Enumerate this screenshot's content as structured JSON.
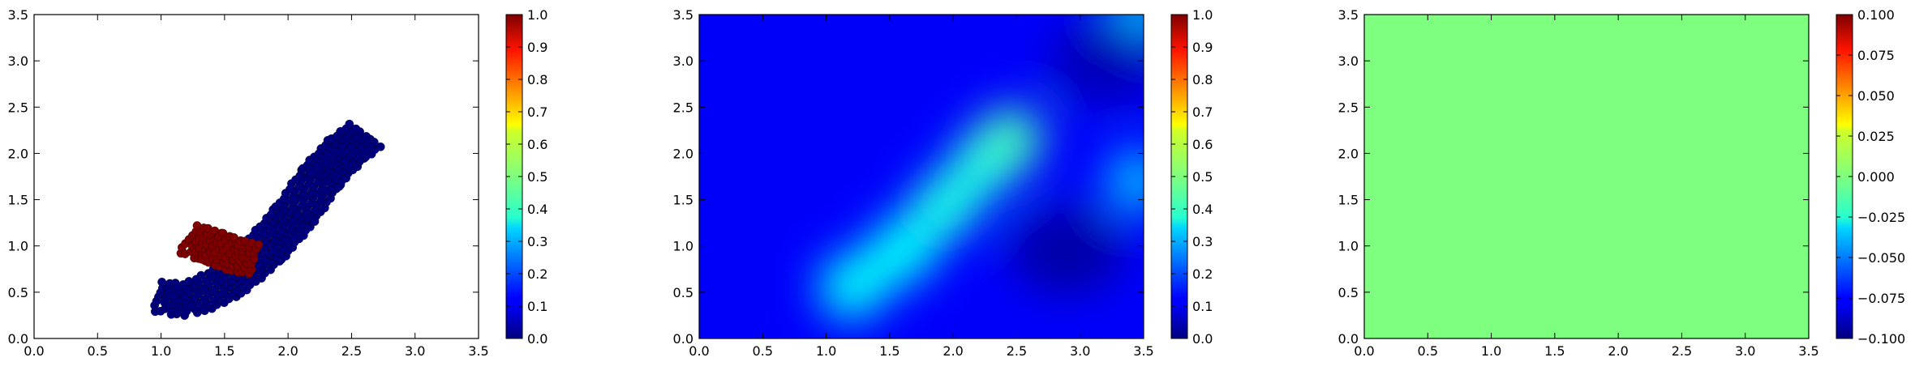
{
  "chart_data": [
    {
      "type": "scatter",
      "xlim": [
        0.0,
        3.5
      ],
      "ylim": [
        0.0,
        3.5
      ],
      "x_ticks": [
        "0.0",
        "0.5",
        "1.0",
        "1.5",
        "2.0",
        "2.5",
        "3.0",
        "3.5"
      ],
      "y_ticks": [
        "0.0",
        "0.5",
        "1.0",
        "1.5",
        "2.0",
        "2.5",
        "3.0",
        "3.5"
      ],
      "colormap": "jet",
      "colorbar": {
        "range": [
          0.0,
          1.0
        ],
        "ticks": [
          "0.0",
          "0.1",
          "0.2",
          "0.3",
          "0.4",
          "0.5",
          "0.6",
          "0.7",
          "0.8",
          "0.9",
          "1.0"
        ]
      },
      "grid": false,
      "clusters": [
        {
          "value": 0.0,
          "color": "#00007f",
          "centerline": [
            [
              0.98,
              0.45
            ],
            [
              1.2,
              0.42
            ],
            [
              1.5,
              0.6
            ],
            [
              1.8,
              0.95
            ],
            [
              2.05,
              1.35
            ],
            [
              2.25,
              1.75
            ],
            [
              2.45,
              2.05
            ],
            [
              2.6,
              2.2
            ]
          ],
          "half_width": 0.19
        },
        {
          "value": 1.0,
          "color": "#7f0000",
          "centerline": [
            [
              1.22,
              1.07
            ],
            [
              1.4,
              1.0
            ],
            [
              1.58,
              0.9
            ],
            [
              1.72,
              0.87
            ]
          ],
          "half_width": 0.15
        }
      ]
    },
    {
      "type": "heatmap",
      "xlim": [
        0.0,
        3.5
      ],
      "ylim": [
        0.0,
        3.5
      ],
      "x_ticks": [
        "0.0",
        "0.5",
        "1.0",
        "1.5",
        "2.0",
        "2.5",
        "3.0",
        "3.5"
      ],
      "y_ticks": [
        "0.0",
        "0.5",
        "1.0",
        "1.5",
        "2.0",
        "2.5",
        "3.0",
        "3.5"
      ],
      "colormap": "jet",
      "colorbar": {
        "range": [
          0.0,
          1.0
        ],
        "ticks": [
          "0.0",
          "0.1",
          "0.2",
          "0.3",
          "0.4",
          "0.5",
          "0.6",
          "0.7",
          "0.8",
          "0.9",
          "1.0"
        ]
      },
      "background_value": 0.12,
      "blobs": [
        {
          "x": 1.2,
          "y": 0.55,
          "value": 0.38
        },
        {
          "x": 1.6,
          "y": 0.95,
          "value": 0.38
        },
        {
          "x": 1.95,
          "y": 1.45,
          "value": 0.4
        },
        {
          "x": 2.25,
          "y": 1.9,
          "value": 0.4
        },
        {
          "x": 2.45,
          "y": 2.15,
          "value": 0.44
        },
        {
          "x": 3.45,
          "y": 1.7,
          "value": 0.3
        },
        {
          "x": 3.45,
          "y": 3.45,
          "value": 0.32
        }
      ],
      "dark_regions": [
        {
          "x": 2.9,
          "y": 0.95,
          "value": 0.02
        },
        {
          "x": 3.2,
          "y": 3.0,
          "value": 0.04
        }
      ]
    },
    {
      "type": "heatmap",
      "xlim": [
        0.0,
        3.5
      ],
      "ylim": [
        0.0,
        3.5
      ],
      "x_ticks": [
        "0.0",
        "0.5",
        "1.0",
        "1.5",
        "2.0",
        "2.5",
        "3.0",
        "3.5"
      ],
      "y_ticks": [
        "0.0",
        "0.5",
        "1.0",
        "1.5",
        "2.0",
        "2.5",
        "3.0",
        "3.5"
      ],
      "colormap": "jet",
      "colorbar": {
        "range": [
          -0.1,
          0.1
        ],
        "ticks": [
          "−0.100",
          "−0.075",
          "−0.050",
          "−0.025",
          "0.000",
          "0.025",
          "0.050",
          "0.075",
          "0.100"
        ]
      },
      "uniform_value": 0.0,
      "fill_color": "#7fff7f"
    }
  ]
}
